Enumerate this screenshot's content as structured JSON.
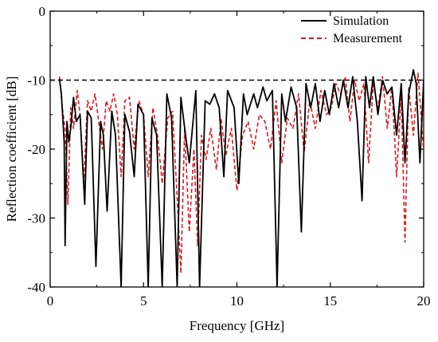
{
  "chart_data": {
    "type": "line",
    "title": "",
    "xlabel": "Frequency [GHz]",
    "ylabel": "Reflection coefficient [dB]",
    "xlim": [
      0,
      20
    ],
    "ylim": [
      -40,
      0
    ],
    "x_ticks": [
      "0",
      "5",
      "10",
      "15",
      "20"
    ],
    "y_ticks": [
      "0",
      "-10",
      "-20",
      "-30",
      "-40"
    ],
    "grid": false,
    "legend_position": "top-right",
    "reference_line": {
      "y": -10,
      "style": "dashed",
      "color": "#000000"
    },
    "series": [
      {
        "name": "Simulation",
        "color": "#000000",
        "style": "solid",
        "x": [
          0.5,
          0.6,
          0.75,
          0.8,
          0.9,
          1.0,
          1.1,
          1.25,
          1.4,
          1.6,
          1.85,
          2.0,
          2.2,
          2.45,
          2.7,
          2.85,
          3.05,
          3.3,
          3.5,
          3.8,
          4.0,
          4.25,
          4.5,
          4.7,
          5.0,
          5.25,
          5.45,
          5.7,
          6.0,
          6.25,
          6.5,
          6.8,
          7.0,
          7.25,
          7.45,
          7.8,
          8.0,
          8.3,
          8.55,
          8.8,
          9.05,
          9.3,
          9.5,
          9.85,
          10.1,
          10.35,
          10.55,
          10.9,
          11.1,
          11.4,
          11.6,
          11.9,
          12.15,
          12.4,
          12.6,
          12.9,
          13.2,
          13.45,
          13.7,
          13.95,
          14.2,
          14.45,
          14.7,
          14.95,
          15.2,
          15.45,
          15.7,
          15.95,
          16.2,
          16.45,
          16.7,
          16.9,
          17.1,
          17.3,
          17.55,
          17.8,
          18.05,
          18.3,
          18.55,
          18.8,
          19.0,
          19.2,
          19.45,
          19.6,
          19.8,
          20.0
        ],
        "y": [
          -9.8,
          -12,
          -19,
          -34,
          -16,
          -19,
          -17,
          -12.5,
          -16,
          -15,
          -28,
          -14.5,
          -15.5,
          -37,
          -16,
          -18,
          -29,
          -14.5,
          -18,
          -40,
          -15,
          -17.5,
          -24,
          -13.5,
          -15,
          -40,
          -15.5,
          -18,
          -40,
          -12,
          -15.5,
          -40,
          -12.5,
          -18,
          -22,
          -11.5,
          -40,
          -13,
          -13.5,
          -12,
          -14,
          -24,
          -11.5,
          -14,
          -25,
          -12,
          -15,
          -12,
          -14,
          -11,
          -13,
          -11.5,
          -40,
          -12,
          -16,
          -11,
          -14,
          -32,
          -10.5,
          -14,
          -10.5,
          -16,
          -11.5,
          -15,
          -10.5,
          -14,
          -10,
          -14,
          -9.5,
          -16,
          -27.5,
          -9.5,
          -14,
          -9.5,
          -15,
          -10,
          -12,
          -11,
          -18,
          -10.5,
          -22,
          -12,
          -8.5,
          -10.5,
          -22,
          -10
        ]
      },
      {
        "name": "Measurement",
        "color": "#e0161e",
        "style": "dashed",
        "x": [
          0.5,
          0.65,
          0.8,
          0.95,
          1.1,
          1.25,
          1.45,
          1.6,
          1.8,
          2.0,
          2.2,
          2.4,
          2.6,
          2.8,
          3.0,
          3.2,
          3.4,
          3.6,
          3.8,
          4.0,
          4.25,
          4.5,
          4.75,
          5.0,
          5.25,
          5.5,
          5.75,
          6.0,
          6.3,
          6.55,
          6.8,
          7.0,
          7.2,
          7.45,
          7.7,
          7.9,
          8.1,
          8.35,
          8.6,
          8.9,
          9.15,
          9.4,
          9.7,
          10.0,
          10.3,
          10.6,
          10.9,
          11.2,
          11.5,
          11.8,
          12.1,
          12.4,
          12.7,
          13.0,
          13.3,
          13.6,
          13.9,
          14.2,
          14.5,
          14.8,
          15.05,
          15.3,
          15.55,
          15.8,
          16.05,
          16.3,
          16.55,
          16.8,
          17.05,
          17.3,
          17.55,
          17.8,
          18.05,
          18.3,
          18.55,
          18.8,
          19.0,
          19.2,
          19.45,
          19.7,
          20.0
        ],
        "y": [
          -9.5,
          -14,
          -17,
          -28,
          -14,
          -17,
          -11.5,
          -15,
          -25,
          -13,
          -14.5,
          -12,
          -16,
          -20,
          -13,
          -14.5,
          -12,
          -15,
          -24,
          -13,
          -12.5,
          -20,
          -13,
          -15,
          -24,
          -14,
          -18,
          -25,
          -15.5,
          -14.5,
          -27,
          -38,
          -17,
          -32,
          -20,
          -34,
          -18,
          -21.5,
          -17,
          -23,
          -15.5,
          -21,
          -17,
          -26,
          -18,
          -16,
          -20,
          -15,
          -16,
          -20,
          -13,
          -22,
          -15.5,
          -17,
          -12,
          -20.5,
          -13,
          -17,
          -11.5,
          -15,
          -14,
          -10.5,
          -12,
          -9.5,
          -16,
          -10,
          -13,
          -10.5,
          -22,
          -10.5,
          -14,
          -9.5,
          -17,
          -11,
          -24,
          -12,
          -33.5,
          -11,
          -18,
          -9,
          -20.5
        ]
      }
    ]
  }
}
